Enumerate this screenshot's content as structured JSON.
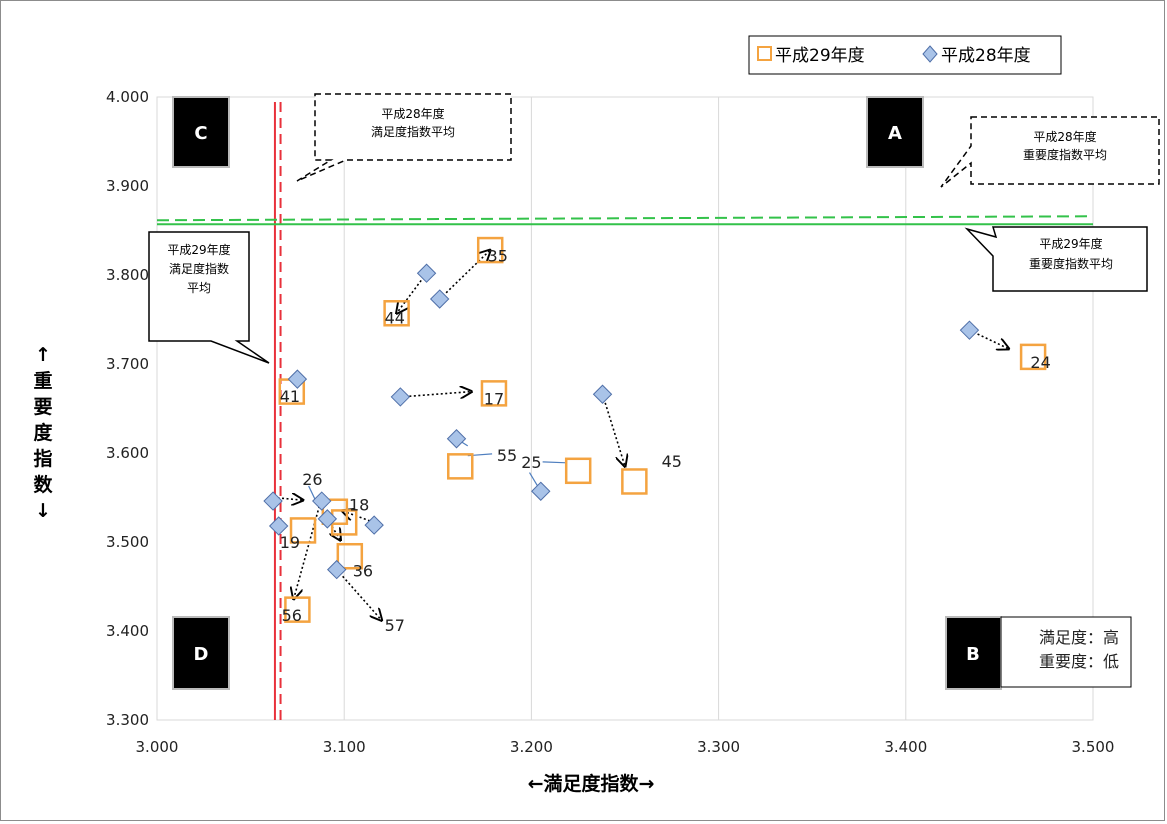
{
  "chart_data": {
    "type": "scatter",
    "xlabel": "←満足度指数→",
    "ylabel": [
      "↑",
      "重",
      "要",
      "度",
      "指",
      "数",
      "↓"
    ],
    "xlim": [
      3.0,
      3.5
    ],
    "ylim": [
      3.3,
      4.0
    ],
    "x_ticks": [
      "3.000",
      "3.100",
      "3.200",
      "3.300",
      "3.400",
      "3.500"
    ],
    "y_ticks": [
      "4.000",
      "3.900",
      "3.800",
      "3.700",
      "3.600",
      "3.500",
      "3.400",
      "3.300"
    ],
    "x_tick_values": [
      3.0,
      3.1,
      3.2,
      3.3,
      3.4,
      3.5
    ],
    "y_tick_values": [
      4.0,
      3.9,
      3.8,
      3.7,
      3.6,
      3.5,
      3.4,
      3.3
    ],
    "grid": "vertical",
    "legend": {
      "placement": "top-right",
      "entries": [
        {
          "label": "平成29年度",
          "marker": "square",
          "color": "#f4a340"
        },
        {
          "label": "平成28年度",
          "marker": "diamond",
          "color": "#a9c3e8"
        }
      ]
    },
    "series": [
      {
        "name": "平成29年度",
        "marker": "square",
        "points": [
          {
            "x": 3.178,
            "y": 3.828
          },
          {
            "x": 3.128,
            "y": 3.757
          },
          {
            "x": 3.468,
            "y": 3.708
          },
          {
            "x": 3.072,
            "y": 3.669
          },
          {
            "x": 3.18,
            "y": 3.667
          },
          {
            "x": 3.162,
            "y": 3.585
          },
          {
            "x": 3.225,
            "y": 3.58
          },
          {
            "x": 3.255,
            "y": 3.568
          },
          {
            "x": 3.095,
            "y": 3.534
          },
          {
            "x": 3.1,
            "y": 3.522
          },
          {
            "x": 3.078,
            "y": 3.513
          },
          {
            "x": 3.103,
            "y": 3.484
          },
          {
            "x": 3.075,
            "y": 3.424
          }
        ]
      },
      {
        "name": "平成28年度",
        "marker": "diamond",
        "points": [
          {
            "x": 3.144,
            "y": 3.802
          },
          {
            "x": 3.151,
            "y": 3.773
          },
          {
            "x": 3.434,
            "y": 3.738
          },
          {
            "x": 3.075,
            "y": 3.683
          },
          {
            "x": 3.13,
            "y": 3.663
          },
          {
            "x": 3.238,
            "y": 3.666
          },
          {
            "x": 3.16,
            "y": 3.616
          },
          {
            "x": 3.205,
            "y": 3.557
          },
          {
            "x": 3.062,
            "y": 3.546
          },
          {
            "x": 3.088,
            "y": 3.546
          },
          {
            "x": 3.091,
            "y": 3.526
          },
          {
            "x": 3.116,
            "y": 3.519
          },
          {
            "x": 3.065,
            "y": 3.518
          },
          {
            "x": 3.096,
            "y": 3.469
          }
        ]
      }
    ],
    "data_labels": [
      {
        "text": "35",
        "x": 3.182,
        "y": 3.822
      },
      {
        "text": "44",
        "x": 3.127,
        "y": 3.752
      },
      {
        "text": "24",
        "x": 3.472,
        "y": 3.702
      },
      {
        "text": "41",
        "x": 3.071,
        "y": 3.664
      },
      {
        "text": "17",
        "x": 3.18,
        "y": 3.661
      },
      {
        "text": "55",
        "x": 3.187,
        "y": 3.598
      },
      {
        "text": "25",
        "x": 3.2,
        "y": 3.59
      },
      {
        "text": "45",
        "x": 3.275,
        "y": 3.591
      },
      {
        "text": "26",
        "x": 3.083,
        "y": 3.571
      },
      {
        "text": "18",
        "x": 3.108,
        "y": 3.542
      },
      {
        "text": "19",
        "x": 3.071,
        "y": 3.5
      },
      {
        "text": "36",
        "x": 3.11,
        "y": 3.468
      },
      {
        "text": "56",
        "x": 3.072,
        "y": 3.418
      },
      {
        "text": "57",
        "x": 3.127,
        "y": 3.407
      }
    ],
    "arrows": [
      {
        "from": [
          3.144,
          3.802
        ],
        "to": [
          3.128,
          3.757
        ]
      },
      {
        "from": [
          3.151,
          3.773
        ],
        "to": [
          3.178,
          3.828
        ]
      },
      {
        "from": [
          3.434,
          3.738
        ],
        "to": [
          3.455,
          3.717
        ]
      },
      {
        "from": [
          3.13,
          3.663
        ],
        "to": [
          3.168,
          3.669
        ]
      },
      {
        "from": [
          3.238,
          3.666
        ],
        "to": [
          3.25,
          3.585
        ]
      },
      {
        "from": [
          3.062,
          3.55
        ],
        "to": [
          3.078,
          3.547
        ]
      },
      {
        "from": [
          3.088,
          3.55
        ],
        "to": [
          3.073,
          3.436
        ]
      },
      {
        "from": [
          3.116,
          3.522
        ],
        "to": [
          3.099,
          3.535
        ]
      },
      {
        "from": [
          3.091,
          3.526
        ],
        "to": [
          3.098,
          3.502
        ]
      },
      {
        "from": [
          3.096,
          3.469
        ],
        "to": [
          3.12,
          3.412
        ]
      }
    ],
    "leader_lines": [
      {
        "from": [
          3.16,
          3.616
        ],
        "to": [
          3.166,
          3.608
        ]
      },
      {
        "from": [
          3.179,
          3.599
        ],
        "to": [
          3.166,
          3.597
        ]
      },
      {
        "from": [
          3.205,
          3.557
        ],
        "to": [
          3.199,
          3.578
        ]
      },
      {
        "from": [
          3.206,
          3.59
        ],
        "to": [
          3.219,
          3.589
        ]
      },
      {
        "from": [
          3.081,
          3.563
        ],
        "to": [
          3.086,
          3.541
        ]
      }
    ],
    "reference_lines": {
      "h28_satisfaction_avg": 3.066,
      "h29_satisfaction_avg": 3.063,
      "h28_importance_avg": 3.866,
      "h29_importance_avg": 3.857,
      "colors": {
        "satisfaction": "#e8313b",
        "importance": "#33c24a"
      }
    },
    "quadrants": [
      {
        "id": "C",
        "text": "C"
      },
      {
        "id": "A",
        "text": "A"
      },
      {
        "id": "D",
        "text": "D"
      },
      {
        "id": "B",
        "text": "B"
      }
    ],
    "callouts": {
      "h28_satisfaction": [
        "平成28年度",
        "満足度指数平均"
      ],
      "h28_importance": [
        "平成28年度",
        "重要度指数平均"
      ],
      "h29_importance": [
        "平成29年度",
        "重要度指数平均"
      ],
      "h29_satisfaction": [
        "平成29年度",
        "満足度指数",
        "平均"
      ],
      "quadrant_b_note": [
        "満足度：高",
        "重要度：低"
      ]
    }
  }
}
